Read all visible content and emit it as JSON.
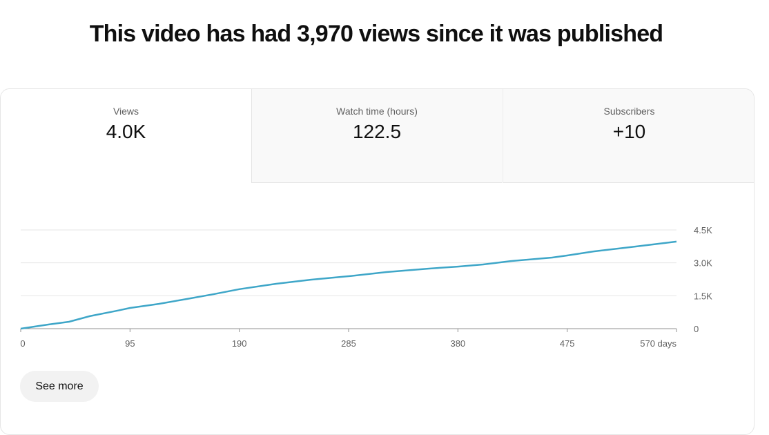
{
  "header": {
    "title": "This video has had 3,970 views since it was published"
  },
  "tabs": [
    {
      "label": "Views",
      "value": "4.0K"
    },
    {
      "label": "Watch time (hours)",
      "value": "122.5"
    },
    {
      "label": "Subscribers",
      "value": "+10"
    }
  ],
  "chart_data": {
    "type": "line",
    "x": [
      0,
      24,
      42,
      60,
      84,
      95,
      120,
      144,
      168,
      190,
      222,
      252,
      285,
      318,
      354,
      380,
      402,
      426,
      462,
      475,
      498,
      534,
      570
    ],
    "series": [
      {
        "name": "Views",
        "color": "#3ea6c8",
        "values": [
          0,
          190,
          315,
          570,
          820,
          945,
          1130,
          1350,
          1575,
          1800,
          2045,
          2230,
          2390,
          2580,
          2735,
          2830,
          2925,
          3080,
          3240,
          3335,
          3520,
          3740,
          3970
        ]
      }
    ],
    "xlim": [
      0,
      570
    ],
    "xticks": [
      0,
      95,
      190,
      285,
      380,
      475,
      {
        "value": 570,
        "label": "570 days"
      }
    ],
    "ylim": [
      0,
      4500
    ],
    "yticks": [
      0,
      {
        "value": 1500,
        "label": "1.5K"
      },
      {
        "value": 3000,
        "label": "3.0K"
      },
      {
        "value": 4500,
        "label": "4.5K"
      }
    ],
    "grid": true
  },
  "button": {
    "label": "See more"
  }
}
